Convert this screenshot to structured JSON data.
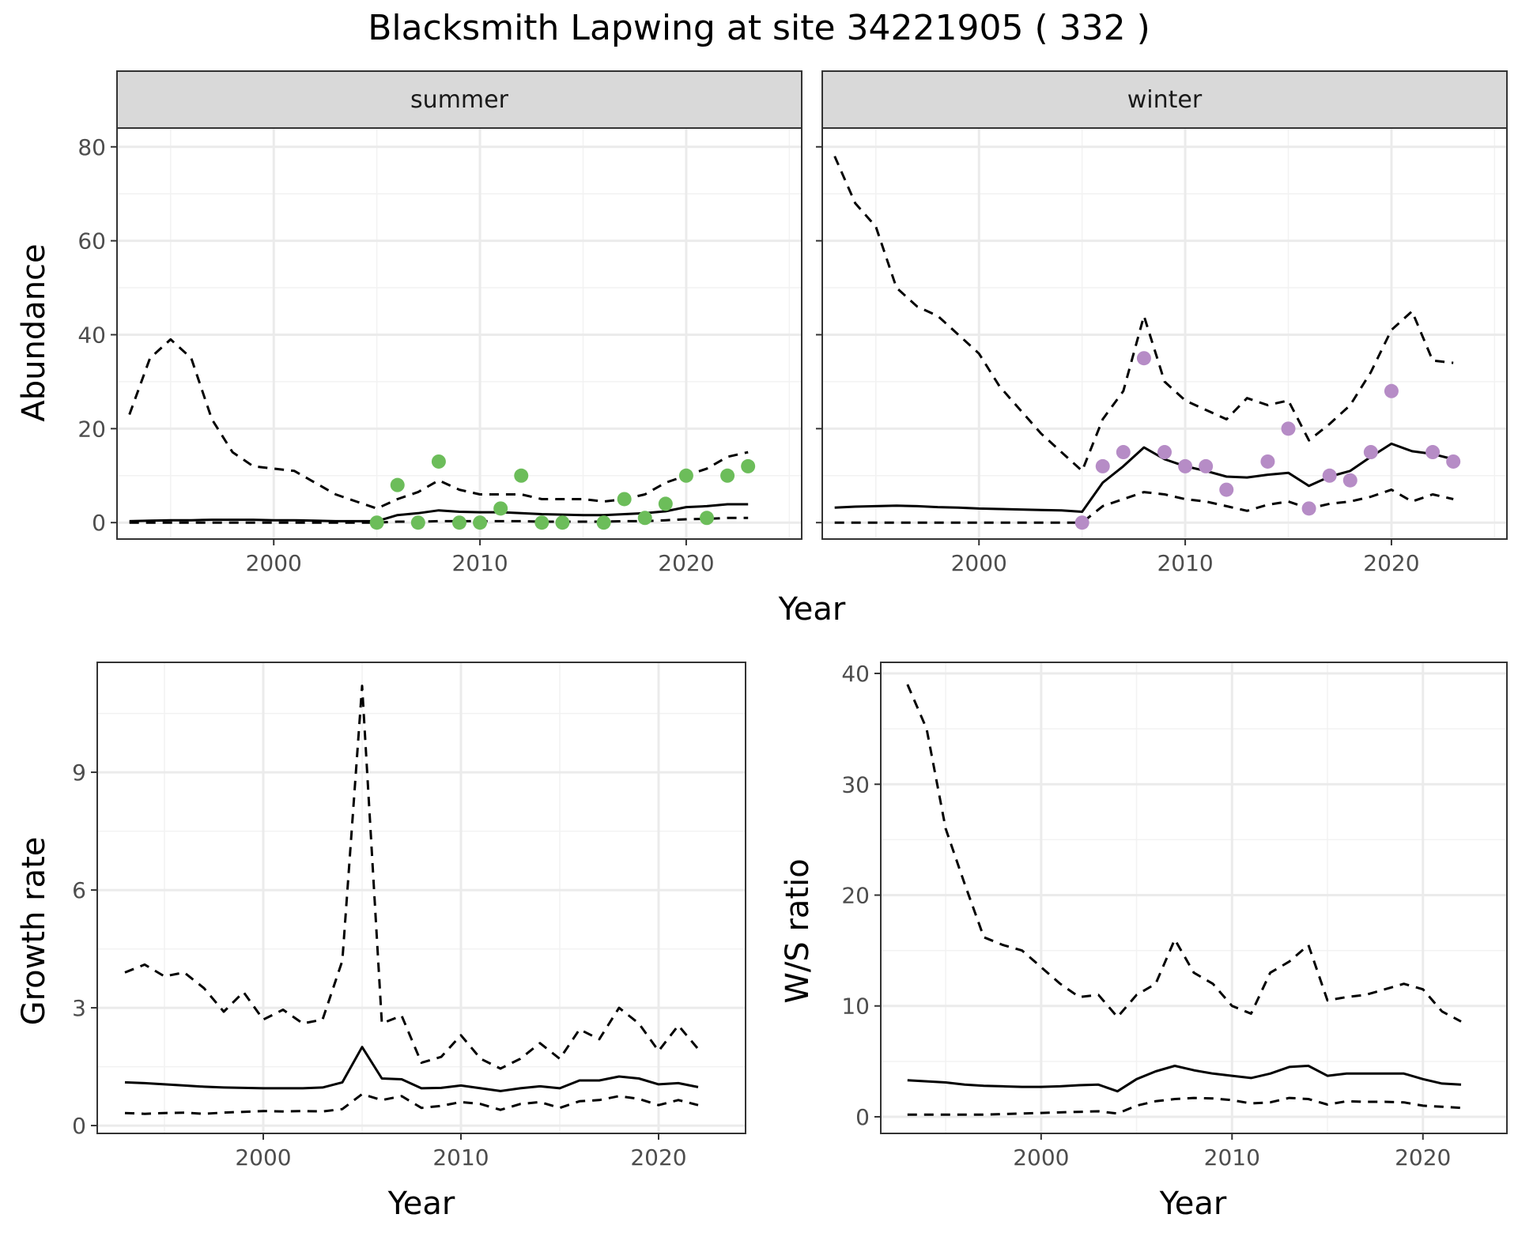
{
  "title": "Blacksmith Lapwing at site 34221905 ( 332 )",
  "colors": {
    "summer_points": "#6cbd5a",
    "winter_points": "#b68cc6",
    "lines": "#000000",
    "grid": "#ebebeb",
    "strip": "#d9d9d9"
  },
  "chart_data": [
    {
      "type": "line",
      "facet": "summer",
      "xlabel": "Year",
      "ylabel": "Abundance",
      "xlim": [
        1992.4,
        2025.6
      ],
      "ylim": [
        -3.5,
        84
      ],
      "xticks": [
        2000,
        2010,
        2020
      ],
      "yticks": [
        0,
        20,
        40,
        60,
        80
      ],
      "grid": true,
      "series": [
        {
          "style": "solid",
          "x": [
            1993,
            1994,
            1995,
            1996,
            1997,
            1998,
            1999,
            2000,
            2001,
            2002,
            2003,
            2004,
            2005,
            2006,
            2007,
            2008,
            2009,
            2010,
            2011,
            2012,
            2013,
            2014,
            2015,
            2016,
            2017,
            2018,
            2019,
            2020,
            2021,
            2022,
            2023
          ],
          "y": [
            0.3,
            0.4,
            0.5,
            0.5,
            0.6,
            0.6,
            0.6,
            0.5,
            0.5,
            0.4,
            0.3,
            0.3,
            0.3,
            1.6,
            2.0,
            2.6,
            2.3,
            2.2,
            2.2,
            2.0,
            1.8,
            1.7,
            1.6,
            1.6,
            1.8,
            2.0,
            2.4,
            3.3,
            3.5,
            3.9,
            3.9
          ]
        },
        {
          "style": "dashed",
          "x": [
            1993,
            1994,
            1995,
            1996,
            1997,
            1998,
            1999,
            2000,
            2001,
            2002,
            2003,
            2004,
            2005,
            2006,
            2007,
            2008,
            2009,
            2010,
            2011,
            2012,
            2013,
            2014,
            2015,
            2016,
            2017,
            2018,
            2019,
            2020,
            2021,
            2022,
            2023
          ],
          "y": [
            23,
            35,
            39,
            35,
            22,
            15,
            12,
            11.5,
            11,
            8.5,
            6,
            4.5,
            3,
            5,
            6.5,
            9,
            7,
            6,
            6,
            6,
            5,
            5,
            5,
            4.5,
            5,
            6,
            8.5,
            10,
            11.5,
            14,
            15
          ]
        },
        {
          "style": "dashed",
          "x": [
            1993,
            1994,
            1995,
            1996,
            1997,
            1998,
            1999,
            2000,
            2001,
            2002,
            2003,
            2004,
            2005,
            2006,
            2007,
            2008,
            2009,
            2010,
            2011,
            2012,
            2013,
            2014,
            2015,
            2016,
            2017,
            2018,
            2019,
            2020,
            2021,
            2022,
            2023
          ],
          "y": [
            0,
            0,
            0,
            0,
            0,
            0,
            0,
            0,
            0,
            0,
            0,
            0,
            0,
            0.2,
            0.2,
            0.3,
            0.3,
            0.3,
            0.3,
            0.3,
            0.2,
            0.2,
            0.2,
            0.2,
            0.3,
            0.3,
            0.5,
            0.7,
            0.8,
            1.0,
            1.0
          ]
        }
      ],
      "points": {
        "x": [
          2005,
          2006,
          2007,
          2008,
          2009,
          2010,
          2011,
          2012,
          2013,
          2014,
          2016,
          2017,
          2018,
          2019,
          2020,
          2021,
          2022,
          2023
        ],
        "y": [
          0,
          8,
          0,
          13,
          0,
          0,
          3,
          10,
          0,
          0,
          0,
          5,
          1,
          4,
          10,
          1,
          10,
          12
        ]
      }
    },
    {
      "type": "line",
      "facet": "winter",
      "xlabel": "Year",
      "ylabel": "Abundance",
      "xlim": [
        1992.4,
        2025.6
      ],
      "ylim": [
        -3.5,
        84
      ],
      "xticks": [
        2000,
        2010,
        2020
      ],
      "yticks": [
        0,
        20,
        40,
        60,
        80
      ],
      "grid": true,
      "series": [
        {
          "style": "solid",
          "x": [
            1993,
            1994,
            1995,
            1996,
            1997,
            1998,
            1999,
            2000,
            2001,
            2002,
            2003,
            2004,
            2005,
            2006,
            2007,
            2008,
            2009,
            2010,
            2011,
            2012,
            2013,
            2014,
            2015,
            2016,
            2017,
            2018,
            2019,
            2020,
            2021,
            2022,
            2023
          ],
          "y": [
            3.2,
            3.4,
            3.5,
            3.6,
            3.5,
            3.3,
            3.2,
            3.0,
            2.9,
            2.8,
            2.7,
            2.6,
            2.3,
            8.5,
            12.0,
            16.0,
            13.5,
            12.0,
            11.0,
            9.8,
            9.6,
            10.2,
            10.6,
            7.8,
            9.8,
            11.0,
            14.0,
            16.8,
            15.2,
            14.6,
            13.5
          ]
        },
        {
          "style": "dashed",
          "x": [
            1993,
            1994,
            1995,
            1996,
            1997,
            1998,
            1999,
            2000,
            2001,
            2002,
            2003,
            2004,
            2005,
            2006,
            2007,
            2008,
            2009,
            2010,
            2011,
            2012,
            2013,
            2014,
            2015,
            2016,
            2017,
            2018,
            2019,
            2020,
            2021,
            2022,
            2023
          ],
          "y": [
            78,
            68,
            63,
            50,
            46,
            44,
            40,
            36,
            29,
            24,
            19,
            15,
            11,
            22,
            28,
            44,
            30,
            26,
            24,
            22,
            26.5,
            25,
            26,
            17.5,
            21,
            25,
            32,
            41,
            45,
            34.5,
            34
          ]
        },
        {
          "style": "dashed",
          "x": [
            1993,
            1994,
            1995,
            1996,
            1997,
            1998,
            1999,
            2000,
            2001,
            2002,
            2003,
            2004,
            2005,
            2006,
            2007,
            2008,
            2009,
            2010,
            2011,
            2012,
            2013,
            2014,
            2015,
            2016,
            2017,
            2018,
            2019,
            2020,
            2021,
            2022,
            2023
          ],
          "y": [
            0,
            0,
            0,
            0,
            0,
            0,
            0,
            0,
            0,
            0,
            0,
            0,
            0,
            3.5,
            5.0,
            6.5,
            6.0,
            5.0,
            4.5,
            3.5,
            2.5,
            3.8,
            4.5,
            3.0,
            4.0,
            4.5,
            5.5,
            7.0,
            4.5,
            6.0,
            5.0
          ]
        }
      ],
      "points": {
        "x": [
          2005,
          2006,
          2007,
          2008,
          2009,
          2010,
          2011,
          2012,
          2014,
          2015,
          2016,
          2017,
          2018,
          2019,
          2020,
          2022,
          2023
        ],
        "y": [
          0,
          12,
          15,
          35,
          15,
          12,
          12,
          7,
          13,
          20,
          3,
          10,
          9,
          15,
          28,
          15,
          13
        ]
      }
    },
    {
      "type": "line",
      "xlabel": "Year",
      "ylabel": "Growth rate",
      "xlim": [
        1991.6,
        2024.4
      ],
      "ylim": [
        -0.2,
        11.8
      ],
      "xticks": [
        2000,
        2010,
        2020
      ],
      "yticks": [
        0,
        3,
        6,
        9
      ],
      "grid": true,
      "series": [
        {
          "style": "solid",
          "x": [
            1993,
            1994,
            1995,
            1996,
            1997,
            1998,
            1999,
            2000,
            2001,
            2002,
            2003,
            2004,
            2005,
            2006,
            2007,
            2008,
            2009,
            2010,
            2011,
            2012,
            2013,
            2014,
            2015,
            2016,
            2017,
            2018,
            2019,
            2020,
            2021,
            2022
          ],
          "y": [
            1.1,
            1.08,
            1.05,
            1.02,
            0.99,
            0.97,
            0.96,
            0.95,
            0.95,
            0.95,
            0.97,
            1.1,
            2.0,
            1.2,
            1.18,
            0.95,
            0.96,
            1.02,
            0.95,
            0.88,
            0.95,
            1.0,
            0.95,
            1.15,
            1.15,
            1.25,
            1.2,
            1.05,
            1.08,
            0.98
          ]
        },
        {
          "style": "dashed",
          "x": [
            1993,
            1994,
            1995,
            1996,
            1997,
            1998,
            1999,
            2000,
            2001,
            2002,
            2003,
            2004,
            2005,
            2006,
            2007,
            2008,
            2009,
            2010,
            2011,
            2012,
            2013,
            2014,
            2015,
            2016,
            2017,
            2018,
            2019,
            2020,
            2021,
            2022
          ],
          "y": [
            3.9,
            4.1,
            3.8,
            3.9,
            3.5,
            2.9,
            3.4,
            2.7,
            2.95,
            2.6,
            2.7,
            4.2,
            11.2,
            2.6,
            2.8,
            1.6,
            1.75,
            2.3,
            1.7,
            1.45,
            1.7,
            2.1,
            1.7,
            2.45,
            2.2,
            3.0,
            2.6,
            1.9,
            2.55,
            1.95
          ]
        },
        {
          "style": "dashed",
          "x": [
            1993,
            1994,
            1995,
            1996,
            1997,
            1998,
            1999,
            2000,
            2001,
            2002,
            2003,
            2004,
            2005,
            2006,
            2007,
            2008,
            2009,
            2010,
            2011,
            2012,
            2013,
            2014,
            2015,
            2016,
            2017,
            2018,
            2019,
            2020,
            2021,
            2022
          ],
          "y": [
            0.32,
            0.3,
            0.32,
            0.33,
            0.3,
            0.33,
            0.35,
            0.37,
            0.36,
            0.37,
            0.36,
            0.42,
            0.8,
            0.65,
            0.75,
            0.45,
            0.5,
            0.6,
            0.55,
            0.4,
            0.55,
            0.6,
            0.45,
            0.62,
            0.65,
            0.75,
            0.68,
            0.52,
            0.65,
            0.52
          ]
        }
      ]
    },
    {
      "type": "line",
      "xlabel": "Year",
      "ylabel": "W/S ratio",
      "xlim": [
        1991.6,
        2024.4
      ],
      "ylim": [
        -1.5,
        41
      ],
      "xticks": [
        2000,
        2010,
        2020
      ],
      "yticks": [
        0,
        10,
        20,
        30,
        40
      ],
      "grid": true,
      "series": [
        {
          "style": "solid",
          "x": [
            1993,
            1994,
            1995,
            1996,
            1997,
            1998,
            1999,
            2000,
            2001,
            2002,
            2003,
            2004,
            2005,
            2006,
            2007,
            2008,
            2009,
            2010,
            2011,
            2012,
            2013,
            2014,
            2015,
            2016,
            2017,
            2018,
            2019,
            2020,
            2021,
            2022
          ],
          "y": [
            3.3,
            3.2,
            3.1,
            2.9,
            2.8,
            2.75,
            2.7,
            2.7,
            2.75,
            2.85,
            2.9,
            2.3,
            3.4,
            4.1,
            4.6,
            4.2,
            3.9,
            3.7,
            3.5,
            3.9,
            4.5,
            4.6,
            3.7,
            3.9,
            3.9,
            3.9,
            3.9,
            3.4,
            3.0,
            2.9
          ]
        },
        {
          "style": "dashed",
          "x": [
            1993,
            1994,
            1995,
            1996,
            1997,
            1998,
            1999,
            2000,
            2001,
            2002,
            2003,
            2004,
            2005,
            2006,
            2007,
            2008,
            2009,
            2010,
            2011,
            2012,
            2013,
            2014,
            2015,
            2016,
            2017,
            2018,
            2019,
            2020,
            2021,
            2022
          ],
          "y": [
            39,
            35,
            26,
            21,
            16.2,
            15.5,
            15,
            13.5,
            12,
            10.8,
            11,
            9,
            11,
            12,
            16,
            13,
            12,
            10,
            9.3,
            13,
            14,
            15.5,
            10.5,
            10.8,
            11,
            11.5,
            12,
            11.5,
            9.5,
            8.6
          ]
        },
        {
          "style": "dashed",
          "x": [
            1993,
            1994,
            1995,
            1996,
            1997,
            1998,
            1999,
            2000,
            2001,
            2002,
            2003,
            2004,
            2005,
            2006,
            2007,
            2008,
            2009,
            2010,
            2011,
            2012,
            2013,
            2014,
            2015,
            2016,
            2017,
            2018,
            2019,
            2020,
            2021,
            2022
          ],
          "y": [
            0.2,
            0.2,
            0.2,
            0.2,
            0.2,
            0.25,
            0.3,
            0.35,
            0.4,
            0.45,
            0.5,
            0.3,
            1.0,
            1.4,
            1.6,
            1.7,
            1.65,
            1.5,
            1.2,
            1.3,
            1.7,
            1.6,
            1.1,
            1.4,
            1.35,
            1.35,
            1.3,
            1.0,
            0.9,
            0.8
          ]
        }
      ]
    }
  ]
}
